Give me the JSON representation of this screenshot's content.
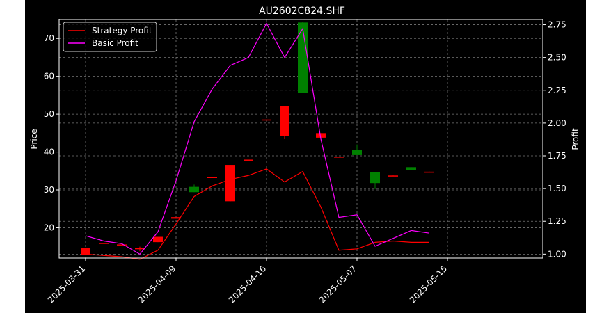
{
  "chart_data": {
    "type": "candlestick",
    "title": "AU2602C824.SHF",
    "ylabel_left": "Price",
    "ylabel_right": "Profit",
    "xlabel": "",
    "y_left_lim": [
      12,
      75
    ],
    "y_right_lim": [
      0.97,
      2.79
    ],
    "y_left_ticks": [
      20,
      30,
      40,
      50,
      60,
      70
    ],
    "y_right_ticks": [
      "1.00",
      "1.25",
      "1.50",
      "1.75",
      "2.00",
      "2.25",
      "2.50",
      "2.75"
    ],
    "x_ticks": [
      {
        "label": "2025-03-31",
        "index": 0
      },
      {
        "label": "2025-04-09",
        "index": 5
      },
      {
        "label": "2025-04-16",
        "index": 10
      },
      {
        "label": "2025-05-07",
        "index": 15
      },
      {
        "label": "2025-05-15",
        "index": 20
      }
    ],
    "grid": true,
    "legend_position": "top-left",
    "colors": {
      "up": "#008000",
      "down": "#ff0000",
      "strategy": "#ff0000",
      "basic": "#ff00ff",
      "background": "#000000",
      "axes": "#ffffff",
      "grid": "#777777"
    },
    "candles": [
      {
        "o": 14.6,
        "h": 14.6,
        "c": 12.8,
        "l": 12.8
      },
      {
        "o": 16.0,
        "h": 16.0,
        "c": 15.8,
        "l": 15.8
      },
      {
        "o": 15.6,
        "h": 15.6,
        "c": 15.4,
        "l": 15.4
      },
      {
        "o": 14.6,
        "h": 15.0,
        "c": 14.4,
        "l": 13.8
      },
      {
        "o": 17.6,
        "h": 17.6,
        "c": 16.2,
        "l": 16.2
      },
      {
        "o": 22.8,
        "h": 22.8,
        "c": 22.4,
        "l": 22.4
      },
      {
        "o": 29.4,
        "h": 31.4,
        "c": 30.8,
        "l": 29.4
      },
      {
        "o": 33.4,
        "h": 33.4,
        "c": 33.2,
        "l": 33.2
      },
      {
        "o": 36.6,
        "h": 36.6,
        "c": 27.0,
        "l": 27.0
      },
      {
        "o": 38.0,
        "h": 38.0,
        "c": 37.8,
        "l": 37.8
      },
      {
        "o": 48.6,
        "h": 48.6,
        "c": 48.4,
        "l": 48.4
      },
      {
        "o": 52.2,
        "h": 52.2,
        "c": 44.2,
        "l": 43.4
      },
      {
        "o": 55.6,
        "h": 74.4,
        "c": 74.2,
        "l": 55.6
      },
      {
        "o": 45.0,
        "h": 45.0,
        "c": 43.8,
        "l": 43.8
      },
      {
        "o": 38.8,
        "h": 38.8,
        "c": 38.6,
        "l": 38.6
      },
      {
        "o": 39.2,
        "h": 42.0,
        "c": 40.6,
        "l": 39.2
      },
      {
        "o": 31.8,
        "h": 34.6,
        "c": 34.6,
        "l": 30.2
      },
      {
        "o": 33.8,
        "h": 33.8,
        "c": 33.6,
        "l": 33.6
      },
      {
        "o": 35.2,
        "h": 36.0,
        "c": 36.0,
        "l": 35.2
      },
      {
        "o": 34.8,
        "h": 34.8,
        "c": 34.6,
        "l": 34.6
      }
    ],
    "series": [
      {
        "name": "Strategy Profit",
        "axis": "right",
        "color": "#ff0000",
        "x": [
          0,
          1,
          2,
          3,
          4,
          5,
          6,
          7,
          8,
          9,
          10,
          11,
          12,
          13,
          14,
          15,
          16,
          17,
          18,
          19
        ],
        "values": [
          1.0,
          0.99,
          0.98,
          0.96,
          1.03,
          1.23,
          1.44,
          1.52,
          1.57,
          1.6,
          1.65,
          1.55,
          1.63,
          1.36,
          1.03,
          1.04,
          1.09,
          1.1,
          1.09,
          1.09
        ]
      },
      {
        "name": "Basic Profit",
        "axis": "right",
        "color": "#ff00ff",
        "x": [
          0,
          1,
          2,
          3,
          4,
          5,
          6,
          7,
          8,
          9,
          10,
          11,
          12,
          13,
          14,
          15,
          16,
          17,
          18,
          19
        ],
        "values": [
          1.14,
          1.1,
          1.08,
          1.0,
          1.17,
          1.56,
          2.01,
          2.26,
          2.44,
          2.5,
          2.76,
          2.5,
          2.72,
          1.88,
          1.28,
          1.3,
          1.06,
          1.12,
          1.18,
          1.16
        ]
      }
    ]
  }
}
